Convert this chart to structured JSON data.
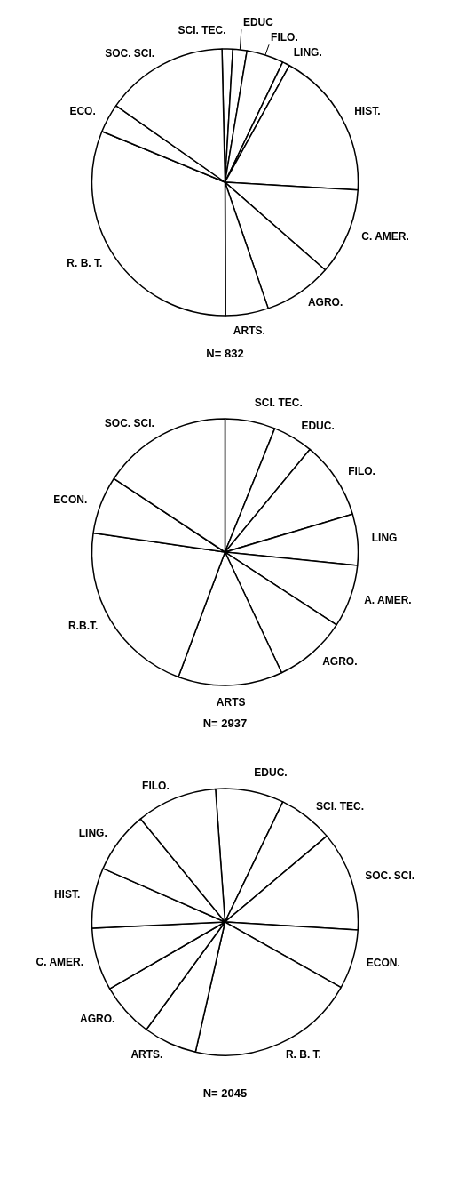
{
  "chart_data": [
    {
      "type": "pie",
      "categories": [
        "SCI. TEC.",
        "EDUC",
        "FILO.",
        "LING.",
        "HIST.",
        "C. AMER.",
        "AGRO.",
        "ARTS.",
        "R. B. T.",
        "ECO.",
        "SOC. SCI."
      ],
      "values": [
        1.3,
        1.7,
        4.5,
        0.9,
        17.9,
        10.5,
        8.3,
        5.2,
        31.3,
        3.5,
        14.9
      ],
      "colors": [
        "#ffffff",
        "#ffffff",
        "#ffffff",
        "#ffffff",
        "#ffffff",
        "#ffffff",
        "#ffffff",
        "#ffffff",
        "#ffffff",
        "#ffffff",
        "#ffffff"
      ],
      "annotations": [
        "N= 832"
      ]
    },
    {
      "type": "pie",
      "categories": [
        "SCI. TEC.",
        "EDUC.",
        "FILO.",
        "LING",
        "A. AMER.",
        "AGRO.",
        "ARTS",
        "R.B.T.",
        "ECON.",
        "SOC. SCI."
      ],
      "values": [
        6.1,
        4.9,
        9.4,
        6.2,
        7.6,
        8.8,
        12.7,
        21.6,
        7.0,
        15.7
      ],
      "colors": [
        "#ffffff",
        "#ffffff",
        "#ffffff",
        "#ffffff",
        "#ffffff",
        "#ffffff",
        "#ffffff",
        "#ffffff",
        "#ffffff",
        "#ffffff"
      ],
      "annotations": [
        "N= 2937"
      ]
    },
    {
      "type": "pie",
      "categories": [
        "EDUC.",
        "SCI. TEC.",
        "SOC. SCI.",
        "ECON.",
        "R. B. T.",
        "ARTS.",
        "AGRO.",
        "C. AMER.",
        "HIST.",
        "LING.",
        "FILO."
      ],
      "values": [
        8.3,
        6.7,
        12.1,
        7.2,
        20.4,
        6.5,
        6.6,
        7.6,
        7.3,
        7.5,
        9.8
      ],
      "colors": [
        "#ffffff",
        "#ffffff",
        "#ffffff",
        "#ffffff",
        "#ffffff",
        "#ffffff",
        "#ffffff",
        "#ffffff",
        "#ffffff",
        "#ffffff",
        "#ffffff"
      ],
      "annotations": [
        "N= 2045"
      ]
    }
  ]
}
